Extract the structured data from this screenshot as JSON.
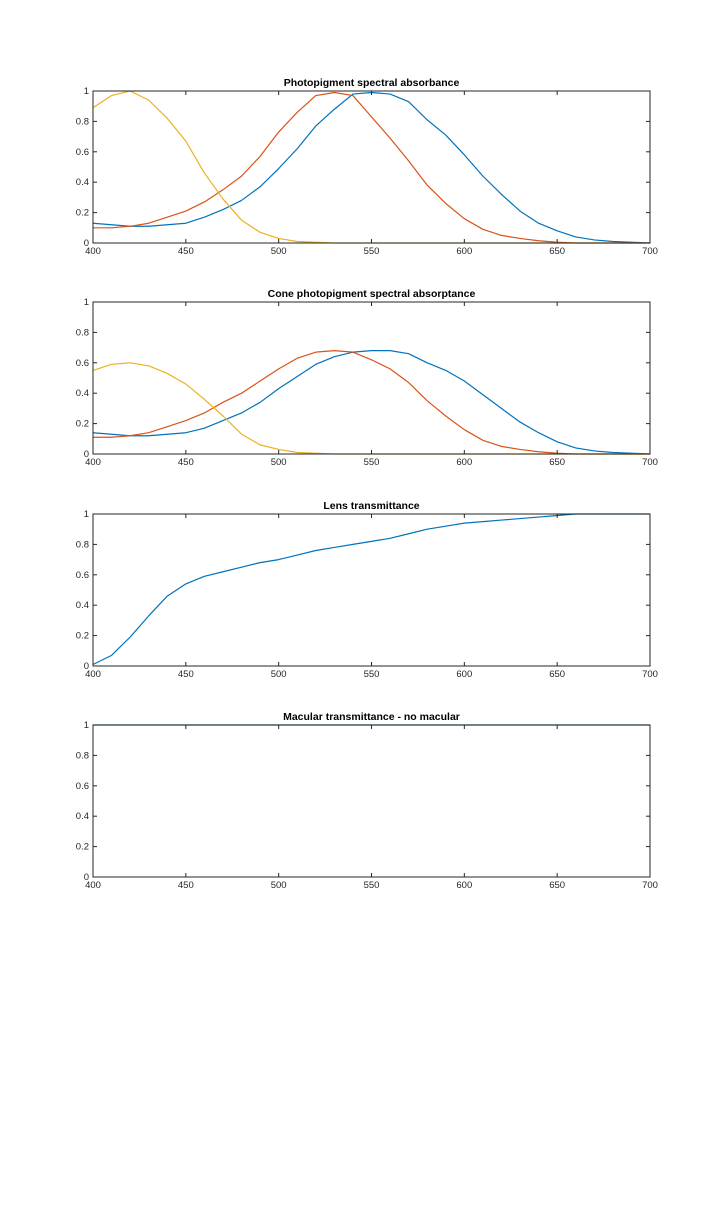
{
  "chart_data": [
    {
      "type": "line",
      "title": "Photopigment spectral absorbance",
      "xlabel": "",
      "ylabel": "",
      "xlim": [
        400,
        700
      ],
      "ylim": [
        0,
        1
      ],
      "xticks": [
        400,
        450,
        500,
        550,
        600,
        650,
        700
      ],
      "yticks": [
        0,
        0.2,
        0.4,
        0.6,
        0.8,
        1
      ],
      "grid": false,
      "x": [
        400,
        410,
        420,
        430,
        440,
        450,
        460,
        470,
        480,
        490,
        500,
        510,
        520,
        530,
        540,
        550,
        560,
        570,
        580,
        590,
        600,
        610,
        620,
        630,
        640,
        650,
        660,
        670,
        680,
        690,
        700
      ],
      "series": [
        {
          "color": "#0072BD",
          "values": [
            0.13,
            0.12,
            0.11,
            0.11,
            0.12,
            0.13,
            0.17,
            0.22,
            0.28,
            0.37,
            0.49,
            0.62,
            0.77,
            0.88,
            0.98,
            0.99,
            0.98,
            0.93,
            0.81,
            0.71,
            0.58,
            0.44,
            0.32,
            0.21,
            0.13,
            0.08,
            0.04,
            0.02,
            0.01,
            0.005,
            0.0
          ]
        },
        {
          "color": "#D95319",
          "values": [
            0.1,
            0.1,
            0.11,
            0.13,
            0.17,
            0.21,
            0.27,
            0.35,
            0.44,
            0.57,
            0.73,
            0.86,
            0.97,
            0.99,
            0.97,
            0.83,
            0.69,
            0.54,
            0.38,
            0.26,
            0.16,
            0.09,
            0.05,
            0.03,
            0.015,
            0.005,
            0.0,
            0.0,
            0.0,
            0.0,
            0.0
          ]
        },
        {
          "color": "#EDB120",
          "values": [
            0.89,
            0.97,
            1.0,
            0.94,
            0.82,
            0.67,
            0.46,
            0.29,
            0.15,
            0.07,
            0.03,
            0.01,
            0.005,
            0.0,
            0.0,
            0.0,
            0.0,
            0.0,
            0.0,
            0.0,
            0.0,
            0.0,
            0.0,
            0.0,
            0.0,
            0.0,
            0.0,
            0.0,
            0.0,
            0.0,
            0.0
          ]
        }
      ]
    },
    {
      "type": "line",
      "title": "Cone photopigment spectral absorptance",
      "xlabel": "",
      "ylabel": "",
      "xlim": [
        400,
        700
      ],
      "ylim": [
        0,
        1
      ],
      "xticks": [
        400,
        450,
        500,
        550,
        600,
        650,
        700
      ],
      "yticks": [
        0,
        0.2,
        0.4,
        0.6,
        0.8,
        1
      ],
      "grid": false,
      "x": [
        400,
        410,
        420,
        430,
        440,
        450,
        460,
        470,
        480,
        490,
        500,
        510,
        520,
        530,
        540,
        550,
        560,
        570,
        580,
        590,
        600,
        610,
        620,
        630,
        640,
        650,
        660,
        670,
        680,
        690,
        700
      ],
      "series": [
        {
          "color": "#0072BD",
          "values": [
            0.14,
            0.13,
            0.12,
            0.12,
            0.13,
            0.14,
            0.17,
            0.22,
            0.27,
            0.34,
            0.43,
            0.51,
            0.59,
            0.64,
            0.67,
            0.68,
            0.68,
            0.66,
            0.6,
            0.55,
            0.48,
            0.39,
            0.3,
            0.21,
            0.14,
            0.08,
            0.04,
            0.02,
            0.01,
            0.005,
            0.0
          ]
        },
        {
          "color": "#D95319",
          "values": [
            0.11,
            0.11,
            0.12,
            0.14,
            0.18,
            0.22,
            0.27,
            0.34,
            0.4,
            0.48,
            0.56,
            0.63,
            0.67,
            0.68,
            0.67,
            0.62,
            0.56,
            0.47,
            0.35,
            0.25,
            0.16,
            0.09,
            0.05,
            0.03,
            0.015,
            0.005,
            0.0,
            0.0,
            0.0,
            0.0,
            0.0
          ]
        },
        {
          "color": "#EDB120",
          "values": [
            0.55,
            0.59,
            0.6,
            0.58,
            0.53,
            0.46,
            0.36,
            0.25,
            0.13,
            0.06,
            0.03,
            0.01,
            0.005,
            0.0,
            0.0,
            0.0,
            0.0,
            0.0,
            0.0,
            0.0,
            0.0,
            0.0,
            0.0,
            0.0,
            0.0,
            0.0,
            0.0,
            0.0,
            0.0,
            0.0,
            0.0
          ]
        }
      ]
    },
    {
      "type": "line",
      "title": "Lens transmittance",
      "xlabel": "",
      "ylabel": "",
      "xlim": [
        400,
        700
      ],
      "ylim": [
        0,
        1
      ],
      "xticks": [
        400,
        450,
        500,
        550,
        600,
        650,
        700
      ],
      "yticks": [
        0,
        0.2,
        0.4,
        0.6,
        0.8,
        1
      ],
      "grid": false,
      "x": [
        400,
        410,
        420,
        430,
        440,
        450,
        460,
        470,
        480,
        490,
        500,
        510,
        520,
        530,
        540,
        550,
        560,
        570,
        580,
        590,
        600,
        610,
        620,
        630,
        640,
        650,
        660,
        670,
        680,
        690,
        700
      ],
      "series": [
        {
          "color": "#0072BD",
          "values": [
            0.01,
            0.07,
            0.19,
            0.33,
            0.46,
            0.54,
            0.59,
            0.62,
            0.65,
            0.68,
            0.7,
            0.73,
            0.76,
            0.78,
            0.8,
            0.82,
            0.84,
            0.87,
            0.9,
            0.92,
            0.94,
            0.95,
            0.96,
            0.97,
            0.98,
            0.99,
            1.0,
            1.0,
            1.0,
            1.0,
            1.0
          ]
        }
      ]
    },
    {
      "type": "line",
      "title": "Macular transmittance - no macular",
      "xlabel": "",
      "ylabel": "",
      "xlim": [
        400,
        700
      ],
      "ylim": [
        0,
        1
      ],
      "xticks": [
        400,
        450,
        500,
        550,
        600,
        650,
        700
      ],
      "yticks": [
        0,
        0.2,
        0.4,
        0.6,
        0.8,
        1
      ],
      "grid": false,
      "x": [
        400,
        700
      ],
      "series": [
        {
          "color": "#0072BD",
          "values": [
            1.0,
            1.0
          ]
        }
      ]
    }
  ]
}
